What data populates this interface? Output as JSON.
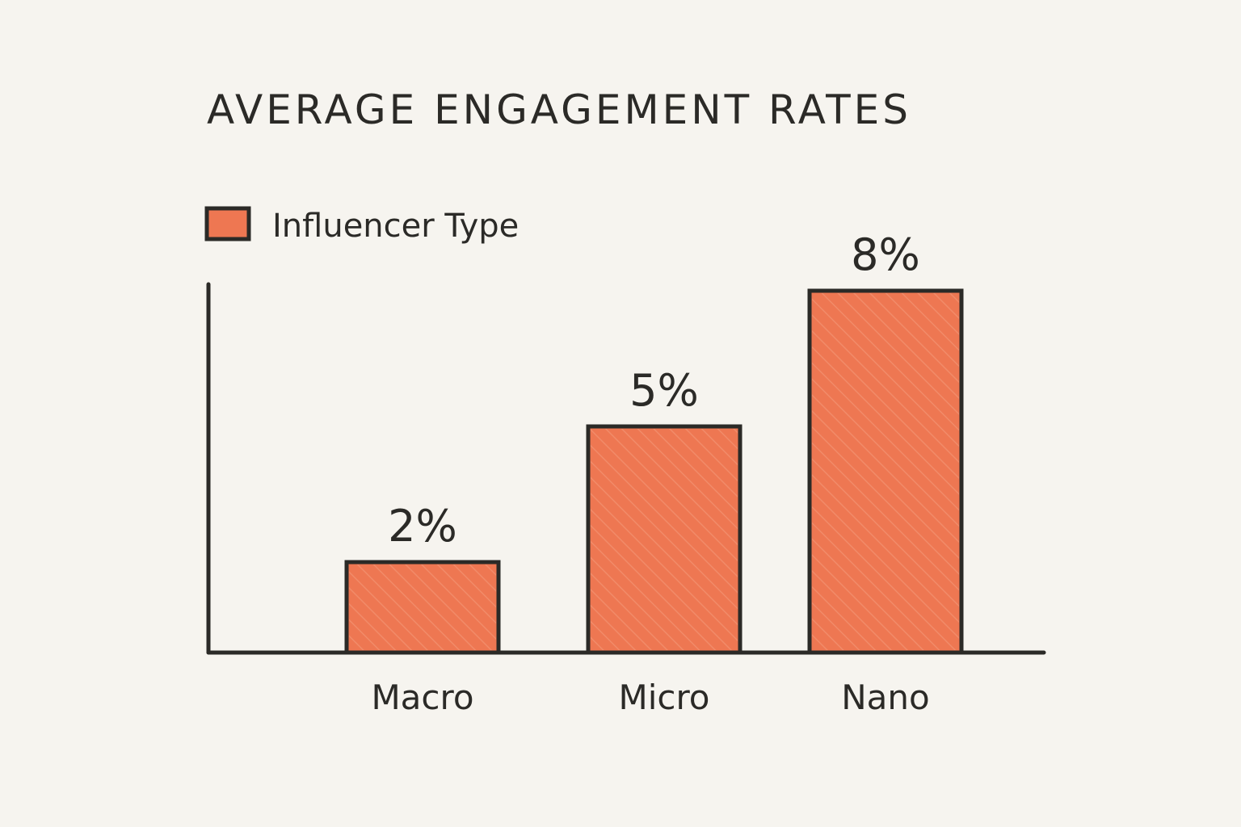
{
  "chart_data": {
    "type": "bar",
    "title": "AVERAGE ENGAGEMENT RATES",
    "legend": [
      {
        "label": "Influencer Type",
        "color": "#ee7752"
      }
    ],
    "categories": [
      "Macro",
      "Micro",
      "Nano"
    ],
    "values": [
      2,
      5,
      8
    ],
    "value_labels": [
      "2%",
      "5%",
      "8%"
    ],
    "unit": "%",
    "xlabel": "",
    "ylabel": "",
    "ylim": [
      0,
      10
    ],
    "grid": false,
    "legend_position": "top-left"
  },
  "colors": {
    "bar_fill": "#ee7752",
    "outline": "#2b2a27",
    "background": "#f6f4ef"
  }
}
